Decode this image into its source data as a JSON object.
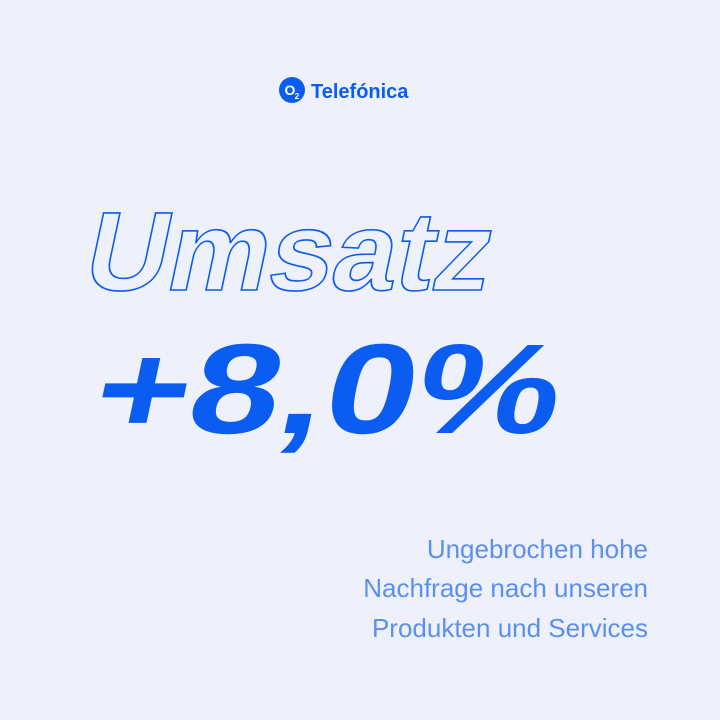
{
  "logo": {
    "badge": "O",
    "badge_sub": "2",
    "name": "Telefónica"
  },
  "headline": "Umsatz",
  "figure": "+8,0%",
  "body": [
    "Ungebrochen hohe",
    "Nachfrage nach unseren",
    "Produkten und Services"
  ]
}
